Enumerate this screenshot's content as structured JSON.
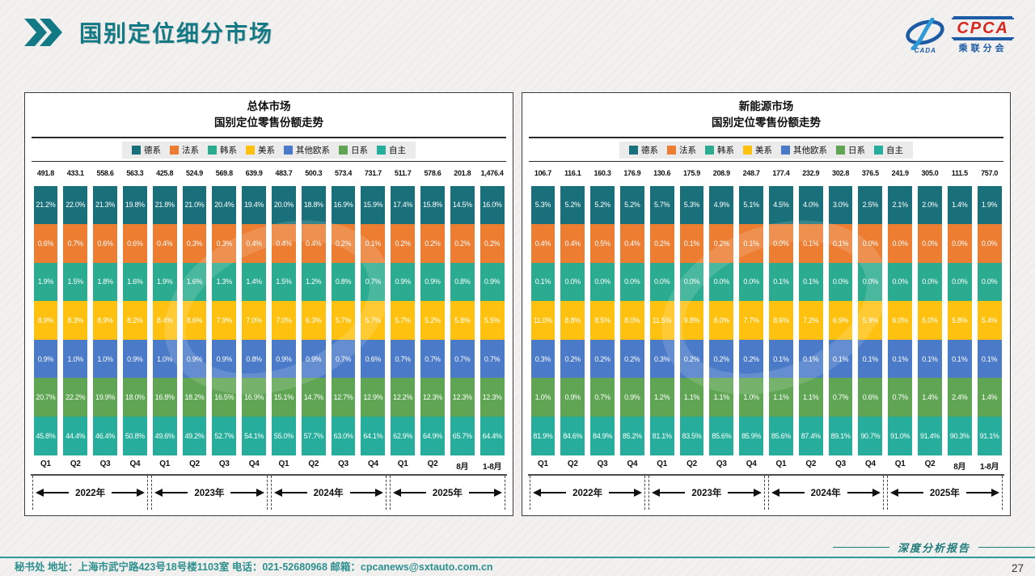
{
  "header": {
    "title": "国别定位细分市场"
  },
  "logo": {
    "brand": "CPCA",
    "subtitle": "乘联分会",
    "mark_text": "CADA"
  },
  "chart_data": [
    {
      "type": "bar",
      "subtype": "100-percent-stacked-column",
      "title": "总体市场",
      "subtitle": "国别定位零售份额走势",
      "legend_position": "top",
      "value_format": "percent",
      "categories": [
        "Q1",
        "Q2",
        "Q3",
        "Q4",
        "Q1",
        "Q2",
        "Q3",
        "Q4",
        "Q1",
        "Q2",
        "Q3",
        "Q4",
        "Q1",
        "Q2",
        "8月",
        "1-8月"
      ],
      "totals": [
        "491.8",
        "433.1",
        "558.6",
        "563.3",
        "425.8",
        "524.9",
        "569.8",
        "639.9",
        "483.7",
        "500.3",
        "573.4",
        "731.7",
        "511.7",
        "578.6",
        "201.8",
        "1,476.4"
      ],
      "series": [
        {
          "name": "德系",
          "color": "#19707a",
          "values": [
            21.2,
            22.0,
            21.3,
            19.8,
            21.8,
            21.0,
            20.4,
            19.4,
            20.0,
            18.8,
            16.9,
            15.9,
            17.4,
            15.8,
            14.5,
            16.0
          ]
        },
        {
          "name": "法系",
          "color": "#ec7d31",
          "values": [
            0.6,
            0.7,
            0.6,
            0.6,
            0.4,
            0.3,
            0.3,
            0.4,
            0.4,
            0.4,
            0.2,
            0.1,
            0.2,
            0.2,
            0.2,
            0.2
          ]
        },
        {
          "name": "韩系",
          "color": "#2bab8f",
          "values": [
            1.9,
            1.5,
            1.8,
            1.6,
            1.9,
            1.6,
            1.3,
            1.4,
            1.5,
            1.2,
            0.8,
            0.7,
            0.9,
            0.9,
            0.8,
            0.9
          ]
        },
        {
          "name": "美系",
          "color": "#ffc110",
          "values": [
            8.9,
            8.3,
            8.9,
            8.2,
            8.4,
            8.6,
            7.9,
            7.0,
            7.0,
            6.3,
            5.7,
            5.7,
            5.7,
            5.2,
            5.8,
            5.5
          ]
        },
        {
          "name": "其他欧系",
          "color": "#4b7bc8",
          "values": [
            0.9,
            1.0,
            1.0,
            0.9,
            1.0,
            0.9,
            0.9,
            0.8,
            0.9,
            0.9,
            0.7,
            0.6,
            0.7,
            0.7,
            0.7,
            0.7
          ]
        },
        {
          "name": "日系",
          "color": "#5fa553",
          "values": [
            20.7,
            22.2,
            19.9,
            18.0,
            16.8,
            18.2,
            16.5,
            16.9,
            15.1,
            14.7,
            12.7,
            12.9,
            12.2,
            12.3,
            12.3,
            12.3
          ]
        },
        {
          "name": "自主",
          "color": "#26ad9b",
          "values": [
            45.8,
            44.4,
            46.4,
            50.8,
            49.6,
            49.2,
            52.7,
            54.1,
            55.0,
            57.7,
            63.0,
            64.1,
            62.9,
            64.9,
            65.7,
            64.4
          ]
        }
      ],
      "year_groups": [
        {
          "label": "2022年",
          "span": 4
        },
        {
          "label": "2023年",
          "span": 4
        },
        {
          "label": "2024年",
          "span": 4
        },
        {
          "label": "2025年",
          "span": 4
        }
      ]
    },
    {
      "type": "bar",
      "subtype": "100-percent-stacked-column",
      "title": "新能源市场",
      "subtitle": "国别定位零售份额走势",
      "legend_position": "top",
      "value_format": "percent",
      "categories": [
        "Q1",
        "Q2",
        "Q3",
        "Q4",
        "Q1",
        "Q2",
        "Q3",
        "Q4",
        "Q1",
        "Q2",
        "Q3",
        "Q4",
        "Q1",
        "Q2",
        "8月",
        "1-8月"
      ],
      "totals": [
        "106.7",
        "116.1",
        "160.3",
        "176.9",
        "130.6",
        "175.9",
        "208.9",
        "248.7",
        "177.4",
        "232.9",
        "302.8",
        "376.5",
        "241.9",
        "305.0",
        "111.5",
        "757.0"
      ],
      "series": [
        {
          "name": "德系",
          "color": "#19707a",
          "values": [
            5.3,
            5.2,
            5.2,
            5.2,
            5.7,
            5.3,
            4.9,
            5.1,
            4.5,
            4.0,
            3.0,
            2.5,
            2.1,
            2.0,
            1.4,
            1.9
          ]
        },
        {
          "name": "法系",
          "color": "#ec7d31",
          "values": [
            0.4,
            0.4,
            0.5,
            0.4,
            0.2,
            0.1,
            0.2,
            0.1,
            0.0,
            0.1,
            0.1,
            0.0,
            0.0,
            0.0,
            0.0,
            0.0
          ]
        },
        {
          "name": "韩系",
          "color": "#2bab8f",
          "values": [
            0.1,
            0.0,
            0.0,
            0.0,
            0.0,
            0.0,
            0.0,
            0.0,
            0.1,
            0.1,
            0.0,
            0.0,
            0.0,
            0.0,
            0.0,
            0.0
          ]
        },
        {
          "name": "美系",
          "color": "#ffc110",
          "values": [
            11.0,
            8.8,
            8.5,
            8.0,
            11.5,
            9.8,
            8.0,
            7.7,
            8.6,
            7.2,
            6.9,
            5.9,
            6.0,
            5.0,
            5.8,
            5.4
          ]
        },
        {
          "name": "其他欧系",
          "color": "#4b7bc8",
          "values": [
            0.3,
            0.2,
            0.2,
            0.2,
            0.3,
            0.2,
            0.2,
            0.2,
            0.1,
            0.1,
            0.1,
            0.1,
            0.1,
            0.1,
            0.1,
            0.1
          ]
        },
        {
          "name": "日系",
          "color": "#5fa553",
          "values": [
            1.0,
            0.9,
            0.7,
            0.9,
            1.2,
            1.1,
            1.1,
            1.0,
            1.1,
            1.1,
            0.7,
            0.6,
            0.7,
            1.4,
            2.4,
            1.4
          ]
        },
        {
          "name": "自主",
          "color": "#26ad9b",
          "values": [
            81.9,
            84.6,
            84.9,
            85.2,
            81.1,
            83.5,
            85.6,
            85.9,
            85.6,
            87.4,
            89.1,
            90.7,
            91.0,
            91.4,
            90.3,
            91.1
          ]
        }
      ],
      "year_groups": [
        {
          "label": "2022年",
          "span": 4
        },
        {
          "label": "2023年",
          "span": 4
        },
        {
          "label": "2024年",
          "span": 4
        },
        {
          "label": "2025年",
          "span": 4
        }
      ]
    }
  ],
  "footer": {
    "left": "秘书处   地址：上海市武宁路423号18号楼1103室  电话：021-52680968   邮箱：cpcanews@sxtauto.com.cn",
    "report_label": "深度分析报告",
    "page": "27"
  }
}
